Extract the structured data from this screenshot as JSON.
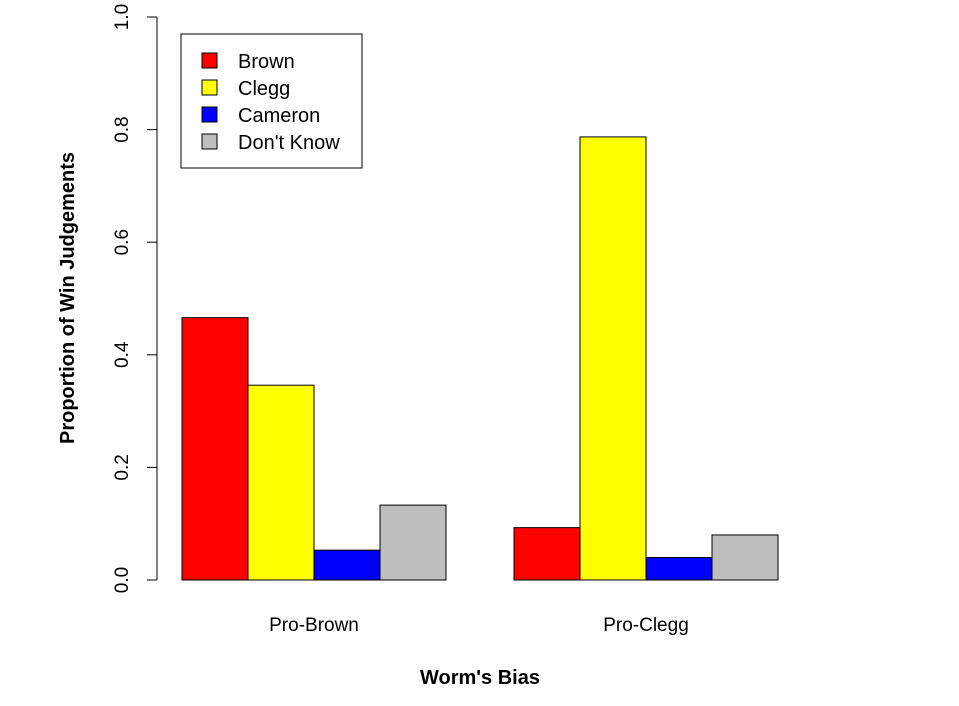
{
  "chart_data": {
    "type": "bar",
    "title": "",
    "xlabel": "Worm's Bias",
    "ylabel": "Proportion of Win Judgements",
    "ylim": [
      0,
      1.0
    ],
    "yticks": [
      "0.0",
      "0.2",
      "0.4",
      "0.6",
      "0.8",
      "1.0"
    ],
    "categories": [
      "Pro-Brown",
      "Pro-Clegg"
    ],
    "series": [
      {
        "name": "Brown",
        "color": "#ff0000",
        "values": [
          0.466,
          0.093
        ]
      },
      {
        "name": "Clegg",
        "color": "#ffff00",
        "values": [
          0.346,
          0.787
        ]
      },
      {
        "name": "Cameron",
        "color": "#0000ff",
        "values": [
          0.053,
          0.04
        ]
      },
      {
        "name": "Don't Know",
        "color": "#bebebe",
        "values": [
          0.133,
          0.08
        ]
      }
    ],
    "grid": false,
    "legend": "top-left"
  }
}
